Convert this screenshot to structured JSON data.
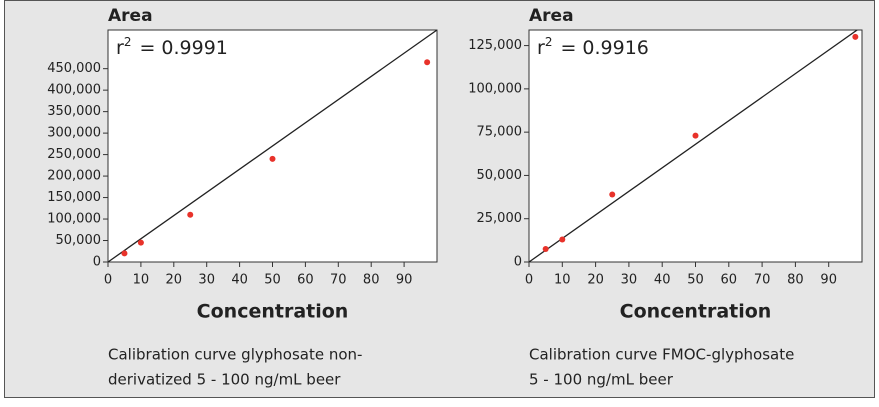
{
  "chart_data": [
    {
      "type": "scatter",
      "title": "Area",
      "x_label": "Concentration",
      "annotation_base": "r",
      "annotation_sup": "2",
      "annotation_rest": "= 0.9991",
      "caption": [
        "Calibration curve glyphosate non-",
        "derivatized 5 - 100 ng/mL beer"
      ],
      "xlim": [
        0,
        100
      ],
      "ylim": [
        0,
        540000
      ],
      "xticks": [
        0,
        10,
        20,
        30,
        40,
        50,
        60,
        70,
        80,
        90
      ],
      "yticks": [
        0,
        {
          "value": 50000,
          "label": "50,000"
        },
        {
          "value": 100000,
          "label": "100,000"
        },
        {
          "value": 150000,
          "label": "150,000"
        },
        {
          "value": 200000,
          "label": "200,000"
        },
        {
          "value": 250000,
          "label": "250,000"
        },
        {
          "value": 300000,
          "label": "300,000"
        },
        {
          "value": 350000,
          "label": "350,000"
        },
        {
          "value": 400000,
          "label": "400,000"
        },
        {
          "value": 450000,
          "label": "450,000"
        }
      ],
      "series": [
        {
          "color": "#e8322a",
          "x": [
            5,
            10,
            25,
            50,
            97
          ],
          "values": [
            20000,
            45000,
            110000,
            240000,
            465000
          ]
        }
      ],
      "fit": {
        "color": "#222222",
        "x": [
          0,
          100
        ],
        "y": [
          0,
          540000
        ]
      }
    },
    {
      "type": "scatter",
      "title": "Area",
      "x_label": "Concentration",
      "annotation_base": "r",
      "annotation_sup": "2",
      "annotation_rest": "= 0.9916",
      "caption": [
        "Calibration curve FMOC-glyphosate",
        "5 - 100 ng/mL beer"
      ],
      "xlim": [
        0,
        100
      ],
      "ylim": [
        0,
        134000
      ],
      "xticks": [
        0,
        10,
        20,
        30,
        40,
        50,
        60,
        70,
        80,
        90
      ],
      "yticks": [
        0,
        {
          "value": 25000,
          "label": "25,000"
        },
        {
          "value": 50000,
          "label": "50,000"
        },
        {
          "value": 75000,
          "label": "75,000"
        },
        {
          "value": 100000,
          "label": "100,000"
        },
        {
          "value": 125000,
          "label": "125,000"
        }
      ],
      "series": [
        {
          "color": "#e8322a",
          "x": [
            5,
            10,
            25,
            50,
            98
          ],
          "values": [
            7500,
            13000,
            39000,
            73000,
            130000
          ]
        }
      ],
      "fit": {
        "color": "#222222",
        "x": [
          0,
          100
        ],
        "y": [
          0,
          136000
        ]
      }
    }
  ]
}
